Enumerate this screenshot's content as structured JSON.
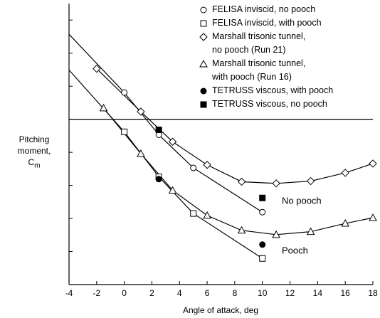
{
  "chart_data": {
    "type": "line",
    "xlabel": "Angle of attack, deg",
    "ylabel": "Pitching\nmoment,",
    "ylabel_symbol": {
      "base": "C",
      "sub": "m"
    },
    "xlim": [
      -4,
      18
    ],
    "xticks": [
      -4,
      -2,
      0,
      2,
      4,
      6,
      8,
      10,
      12,
      14,
      16,
      18
    ],
    "ylim": [
      -5,
      3.5
    ],
    "yticks": [
      -4,
      -3,
      -2,
      -1,
      0,
      1,
      2,
      3
    ],
    "zero_line": true,
    "legend": "upper right",
    "annotations": [
      "No pooch",
      "Pooch"
    ],
    "series": [
      {
        "name": "FELISA inviscid, no pooch",
        "color": "#000000",
        "marker": "circle",
        "filled": false,
        "x": [
          0,
          2.5,
          5,
          10
        ],
        "values": [
          0.81,
          -0.47,
          -1.47,
          -2.81
        ],
        "curve": {
          "x": [
            -4,
            0,
            2.5,
            5,
            10
          ],
          "values": [
            2.57,
            0.81,
            -0.47,
            -1.47,
            -2.81
          ]
        }
      },
      {
        "name": "FELISA inviscid, with pooch",
        "color": "#000000",
        "marker": "square",
        "filled": false,
        "x": [
          0,
          2.5,
          5,
          10
        ],
        "values": [
          -0.38,
          -1.74,
          -2.85,
          -4.21
        ],
        "curve": {
          "x": [
            -4,
            0,
            2.5,
            5,
            10
          ],
          "values": [
            1.49,
            -0.38,
            -1.74,
            -2.85,
            -4.21
          ]
        }
      },
      {
        "name": "Marshall trisonic tunnel,\nno pooch (Run 21)",
        "color": "#000000",
        "marker": "diamond",
        "filled": false,
        "x": [
          -2,
          1.2,
          3.5,
          6,
          8.5,
          11,
          13.5,
          16,
          18
        ],
        "values": [
          1.53,
          0.23,
          -0.68,
          -1.38,
          -1.89,
          -1.94,
          -1.87,
          -1.62,
          -1.34
        ],
        "line": true
      },
      {
        "name": "Marshall trisonic tunnel,\nwith pooch (Run 16)",
        "color": "#000000",
        "marker": "triangle",
        "filled": false,
        "x": [
          -1.5,
          1.2,
          3.5,
          6,
          8.5,
          11,
          13.5,
          16,
          18
        ],
        "values": [
          0.34,
          -1.04,
          -2.15,
          -2.91,
          -3.36,
          -3.49,
          -3.4,
          -3.15,
          -2.98
        ],
        "line": true
      },
      {
        "name": "TETRUSS viscous, with pooch",
        "color": "#000000",
        "marker": "circle",
        "filled": true,
        "x": [
          2.5,
          10
        ],
        "values": [
          -1.81,
          -3.79
        ]
      },
      {
        "name": "TETRUSS viscous, no pooch",
        "color": "#000000",
        "marker": "square",
        "filled": true,
        "x": [
          2.5,
          10
        ],
        "values": [
          -0.32,
          -2.38
        ]
      }
    ]
  }
}
